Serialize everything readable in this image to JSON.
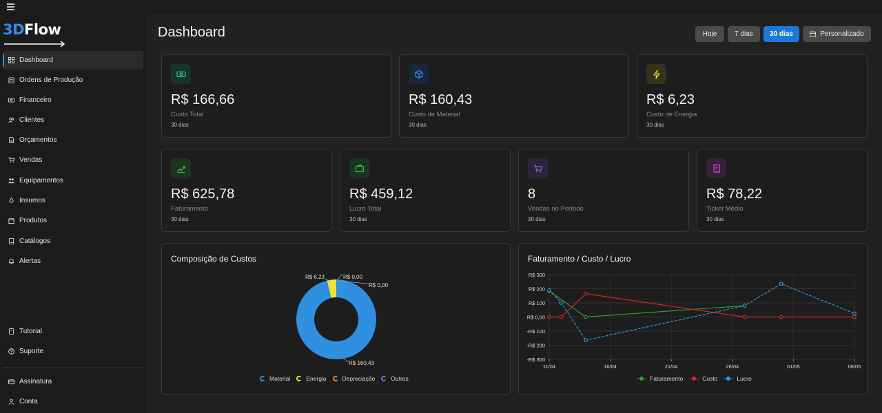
{
  "app": {
    "logo_prefix": "3D",
    "logo_suffix": "Flow"
  },
  "sidebar": {
    "items": [
      {
        "label": "Dashboard",
        "icon": "grid-icon",
        "active": true
      },
      {
        "label": "Ordens de Produção",
        "icon": "clipboard-icon"
      },
      {
        "label": "Financeiro",
        "icon": "money-icon"
      },
      {
        "label": "Clientes",
        "icon": "users-icon"
      },
      {
        "label": "Orçamentos",
        "icon": "document-icon"
      },
      {
        "label": "Vendas",
        "icon": "cart-icon"
      },
      {
        "label": "Equipamentos",
        "icon": "users-group-icon"
      },
      {
        "label": "Insumos",
        "icon": "drop-icon"
      },
      {
        "label": "Produtos",
        "icon": "box-icon"
      },
      {
        "label": "Catálogos",
        "icon": "book-icon"
      },
      {
        "label": "Alertas",
        "icon": "bell-icon"
      }
    ],
    "bottom_items": [
      {
        "label": "Tutorial",
        "icon": "book-open-icon"
      },
      {
        "label": "Suporte",
        "icon": "help-circle-icon"
      },
      {
        "label": "Assinatura",
        "icon": "credit-card-icon"
      },
      {
        "label": "Conta",
        "icon": "user-icon"
      }
    ]
  },
  "header": {
    "title": "Dashboard",
    "ranges": [
      {
        "label": "Hoje",
        "active": false
      },
      {
        "label": "7 dias",
        "active": false
      },
      {
        "label": "30 dias",
        "active": true
      },
      {
        "label": "Personalizado",
        "active": false,
        "icon": "calendar-icon"
      }
    ]
  },
  "stats": [
    {
      "value": "R$ 166,66",
      "label": "Custo Total",
      "sub": "30 dias",
      "icon": "banknote-icon",
      "color": "#2fc28e"
    },
    {
      "value": "R$ 160,43",
      "label": "Custo de Material",
      "sub": "30 dias",
      "icon": "cube-icon",
      "color": "#3a8ff0"
    },
    {
      "value": "R$ 6,23",
      "label": "Custo de Energia",
      "sub": "30 dias",
      "icon": "bolt-icon",
      "color": "#e6d43a"
    },
    {
      "value": "R$ 625,78",
      "label": "Faturamento",
      "sub": "30 dias",
      "icon": "trending-up-icon",
      "color": "#3cc24a"
    },
    {
      "value": "R$ 459,12",
      "label": "Lucro Total",
      "sub": "30 dias",
      "icon": "wallet-icon",
      "color": "#3cc24a"
    },
    {
      "value": "8",
      "label": "Vendas no Período",
      "sub": "30 dias",
      "icon": "cart-icon",
      "color": "#8a6ad9"
    },
    {
      "value": "R$ 78,22",
      "label": "Ticket Médio",
      "sub": "30 dias",
      "icon": "receipt-icon",
      "color": "#d94ac2"
    }
  ],
  "chart_data": [
    {
      "type": "pie",
      "title": "Composição de Custos",
      "donut": true,
      "slices": [
        {
          "name": "Material",
          "value": 160.43,
          "label": "R$ 160,43",
          "color": "#2f8fe0"
        },
        {
          "name": "Energia",
          "value": 6.23,
          "label": "R$ 6,23",
          "color": "#f0e03a"
        },
        {
          "name": "Depreciação",
          "value": 0,
          "label": "R$ 0,00",
          "color": "#f07a2a"
        },
        {
          "name": "Outros",
          "value": 0,
          "label": "R$ 0,00",
          "color": "#7a6ad9"
        }
      ],
      "legend_position": "bottom"
    },
    {
      "type": "line",
      "title": "Faturamento / Custo / Lucro",
      "x": [
        "11/04",
        "12/04",
        "14/04",
        "27/04",
        "30/04",
        "06/05"
      ],
      "x_ticks": [
        "11/04",
        "16/04",
        "21/04",
        "26/04",
        "01/05",
        "06/05"
      ],
      "y_ticks": [
        "R$ 300",
        "R$ 200",
        "R$ 100",
        "R$ 0,00",
        "-R$ 100",
        "-R$ 200",
        "-R$ 300"
      ],
      "ylim": [
        -300,
        300
      ],
      "grid": true,
      "legend_position": "bottom",
      "series": [
        {
          "name": "Faturamento",
          "color": "#2aa02a",
          "dashed": false,
          "points": [
            {
              "x": "11/04",
              "y": 185
            },
            {
              "x": "14/04",
              "y": 0
            },
            {
              "x": "27/04",
              "y": 80
            }
          ]
        },
        {
          "name": "Custo",
          "color": "#e0202a",
          "dashed": false,
          "points": [
            {
              "x": "11/04",
              "y": 0
            },
            {
              "x": "12/04",
              "y": 0
            },
            {
              "x": "14/04",
              "y": 165
            },
            {
              "x": "27/04",
              "y": 0
            },
            {
              "x": "30/04",
              "y": 0
            },
            {
              "x": "06/05",
              "y": 0
            }
          ]
        },
        {
          "name": "Lucro",
          "color": "#2a9ae0",
          "dashed": true,
          "points": [
            {
              "x": "11/04",
              "y": 190
            },
            {
              "x": "12/04",
              "y": 100
            },
            {
              "x": "14/04",
              "y": -165
            },
            {
              "x": "27/04",
              "y": 80
            },
            {
              "x": "30/04",
              "y": 235
            },
            {
              "x": "06/05",
              "y": 25
            }
          ]
        }
      ]
    }
  ]
}
